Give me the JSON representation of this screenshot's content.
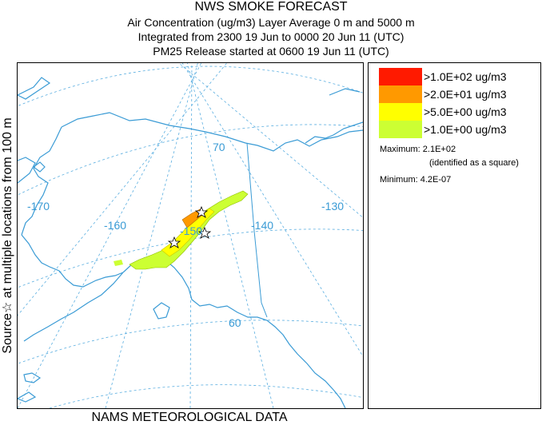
{
  "header": {
    "title": "NWS SMOKE FORECAST",
    "line1": "Air Concentration (ug/m3) Layer Average    0 m and  5000 m",
    "line2": "Integrated from 2300 19 Jun to 0000 20 Jun 11 (UTC)",
    "line3": "PM25 Release started at 0600 19 Jun 11 (UTC)"
  },
  "side_label": "Source☆ at multiple locations  from  100 m",
  "footer": "NAMS METEOROLOGICAL DATA",
  "map": {
    "longitude_labels": [
      "-170",
      "-160",
      "-150",
      "-140",
      "-130"
    ],
    "latitude_labels": [
      "70",
      "60"
    ],
    "colors": {
      "graticule": "#5aaee0",
      "coast": "#3a9bd5",
      "border": "#3a9bd5"
    }
  },
  "legend": {
    "items": [
      {
        "label": ">1.0E+02 ug/m3",
        "color": "#ff1a00"
      },
      {
        "label": ">2.0E+01 ug/m3",
        "color": "#ff9900"
      },
      {
        "label": ">5.0E+00 ug/m3",
        "color": "#ffff00"
      },
      {
        "label": ">1.0E+00 ug/m3",
        "color": "#ccff33"
      }
    ],
    "maximum": "Maximum: 2.1E+02",
    "maximum_note": "(identified as a square)",
    "minimum": "Minimum: 4.2E-07"
  }
}
